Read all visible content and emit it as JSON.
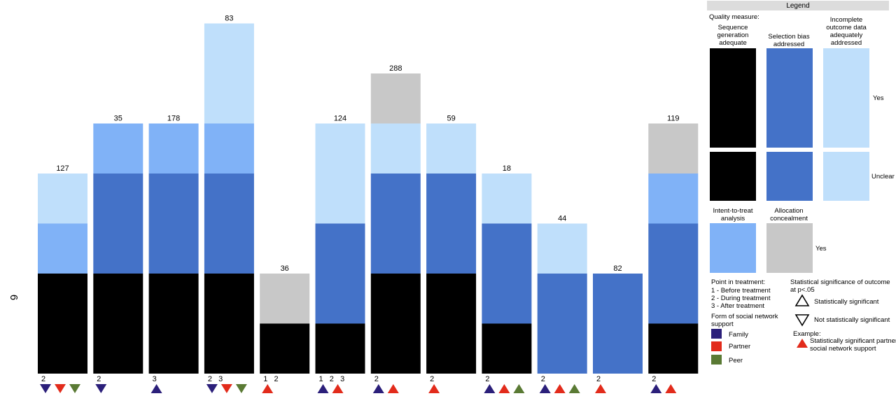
{
  "side_label": "6",
  "colors": {
    "sequence": "#000000",
    "selection": "#4472c8",
    "incomplete": "#bfdffb",
    "itt": "#80b2f7",
    "allocation": "#c8c8c8",
    "family": "#2b1f7a",
    "partner": "#e22b1b",
    "peer": "#5a7a34"
  },
  "chart_data": {
    "type": "bar",
    "description_levels": "Stacked quality-measure bars per study; each segment = 1 level (Unclear=1, Yes=2)",
    "series_order": [
      "Sequence generation adequate",
      "Selection bias addressed",
      "Intent-to-treat analysis",
      "Incomplete outcome data adequately addressed",
      "Allocation concealment"
    ],
    "studies": [
      {
        "label": "127",
        "segments": [
          {
            "measure": "sequence",
            "units": 2
          },
          {
            "measure": "itt",
            "units": 1
          },
          {
            "measure": "incomplete",
            "units": 1
          }
        ],
        "phases": "2",
        "markers": [
          {
            "form": "family",
            "sig": false
          },
          {
            "form": "partner",
            "sig": false
          },
          {
            "form": "peer",
            "sig": false
          }
        ]
      },
      {
        "label": "35",
        "segments": [
          {
            "measure": "sequence",
            "units": 2
          },
          {
            "measure": "selection",
            "units": 2
          },
          {
            "measure": "itt",
            "units": 1
          }
        ],
        "phases": "2",
        "markers": [
          {
            "form": "family",
            "sig": false
          }
        ]
      },
      {
        "label": "178",
        "segments": [
          {
            "measure": "sequence",
            "units": 2
          },
          {
            "measure": "selection",
            "units": 2
          },
          {
            "measure": "itt",
            "units": 1
          }
        ],
        "phases": "3",
        "markers": [
          {
            "form": "family",
            "sig": true
          }
        ]
      },
      {
        "label": "83",
        "segments": [
          {
            "measure": "sequence",
            "units": 2
          },
          {
            "measure": "selection",
            "units": 2
          },
          {
            "measure": "itt",
            "units": 1
          },
          {
            "measure": "incomplete",
            "units": 2
          }
        ],
        "phases": "2   3",
        "markers": [
          {
            "form": "family",
            "sig": false
          },
          {
            "form": "partner",
            "sig": false
          },
          {
            "form": "peer",
            "sig": false
          }
        ]
      },
      {
        "label": "36",
        "segments": [
          {
            "measure": "sequence",
            "units": 1
          },
          {
            "measure": "allocation",
            "units": 1
          }
        ],
        "phases": "1   2",
        "markers": [
          {
            "form": "partner",
            "sig": true
          }
        ]
      },
      {
        "label": "124",
        "segments": [
          {
            "measure": "sequence",
            "units": 1
          },
          {
            "measure": "selection",
            "units": 2
          },
          {
            "measure": "incomplete",
            "units": 2
          }
        ],
        "phases": "1   2   3",
        "markers": [
          {
            "form": "family",
            "sig": true
          },
          {
            "form": "partner",
            "sig": true
          }
        ]
      },
      {
        "label": "288",
        "segments": [
          {
            "measure": "sequence",
            "units": 2
          },
          {
            "measure": "selection",
            "units": 2
          },
          {
            "measure": "incomplete",
            "units": 1
          },
          {
            "measure": "allocation",
            "units": 1
          }
        ],
        "phases": "2",
        "markers": [
          {
            "form": "family",
            "sig": true
          },
          {
            "form": "partner",
            "sig": true
          }
        ]
      },
      {
        "label": "59",
        "segments": [
          {
            "measure": "sequence",
            "units": 2
          },
          {
            "measure": "selection",
            "units": 2
          },
          {
            "measure": "incomplete",
            "units": 1
          }
        ],
        "phases": "2",
        "markers": [
          {
            "form": "partner",
            "sig": true
          }
        ]
      },
      {
        "label": "18",
        "segments": [
          {
            "measure": "sequence",
            "units": 1
          },
          {
            "measure": "selection",
            "units": 2
          },
          {
            "measure": "incomplete",
            "units": 1
          }
        ],
        "phases": "2",
        "markers": [
          {
            "form": "family",
            "sig": true
          },
          {
            "form": "partner",
            "sig": true
          },
          {
            "form": "peer",
            "sig": true
          }
        ]
      },
      {
        "label": "44",
        "segments": [
          {
            "measure": "selection",
            "units": 2
          },
          {
            "measure": "incomplete",
            "units": 1
          }
        ],
        "phases": "2",
        "markers": [
          {
            "form": "family",
            "sig": true
          },
          {
            "form": "partner",
            "sig": true
          },
          {
            "form": "peer",
            "sig": true
          }
        ]
      },
      {
        "label": "82",
        "segments": [
          {
            "measure": "selection",
            "units": 2
          }
        ],
        "phases": "2",
        "markers": [
          {
            "form": "partner",
            "sig": true
          }
        ]
      },
      {
        "label": "119",
        "segments": [
          {
            "measure": "sequence",
            "units": 1
          },
          {
            "measure": "selection",
            "units": 2
          },
          {
            "measure": "itt",
            "units": 1
          },
          {
            "measure": "allocation",
            "units": 1
          }
        ],
        "phases": "2",
        "markers": [
          {
            "form": "family",
            "sig": true
          },
          {
            "form": "partner",
            "sig": true
          }
        ]
      }
    ]
  },
  "legend": {
    "title": "Legend",
    "quality_measure": "Quality measure:",
    "sequence_lines": [
      "Sequence",
      "generation",
      "adequate"
    ],
    "selection_lines": [
      "Selection bias",
      "addressed"
    ],
    "incomplete_lines": [
      "Incomplete",
      "outcome data",
      "adequately",
      "addressed"
    ],
    "itt_lines": [
      "Intent-to-treat",
      "analysis"
    ],
    "allocation_lines": [
      "Allocation",
      "concealment"
    ],
    "yes": "Yes",
    "unclear": "Unclear",
    "yes2": "Yes",
    "point_title": "Point in treatment:",
    "point_1": "1 - Before treatment",
    "point_2": "2 - During treatment",
    "point_3": "3 - After treatment",
    "form_title_lines": [
      "Form of social network",
      "support"
    ],
    "family": "Family",
    "partner": "Partner",
    "peer": "Peer",
    "stat_title_lines": [
      "Statistical significance of outcome",
      "at p<.05"
    ],
    "sig": "Statistically significant",
    "not_sig": "Not statistically significant",
    "example_title": "Example:",
    "example_lines": [
      "Statistically significant partner",
      "social network support"
    ]
  }
}
